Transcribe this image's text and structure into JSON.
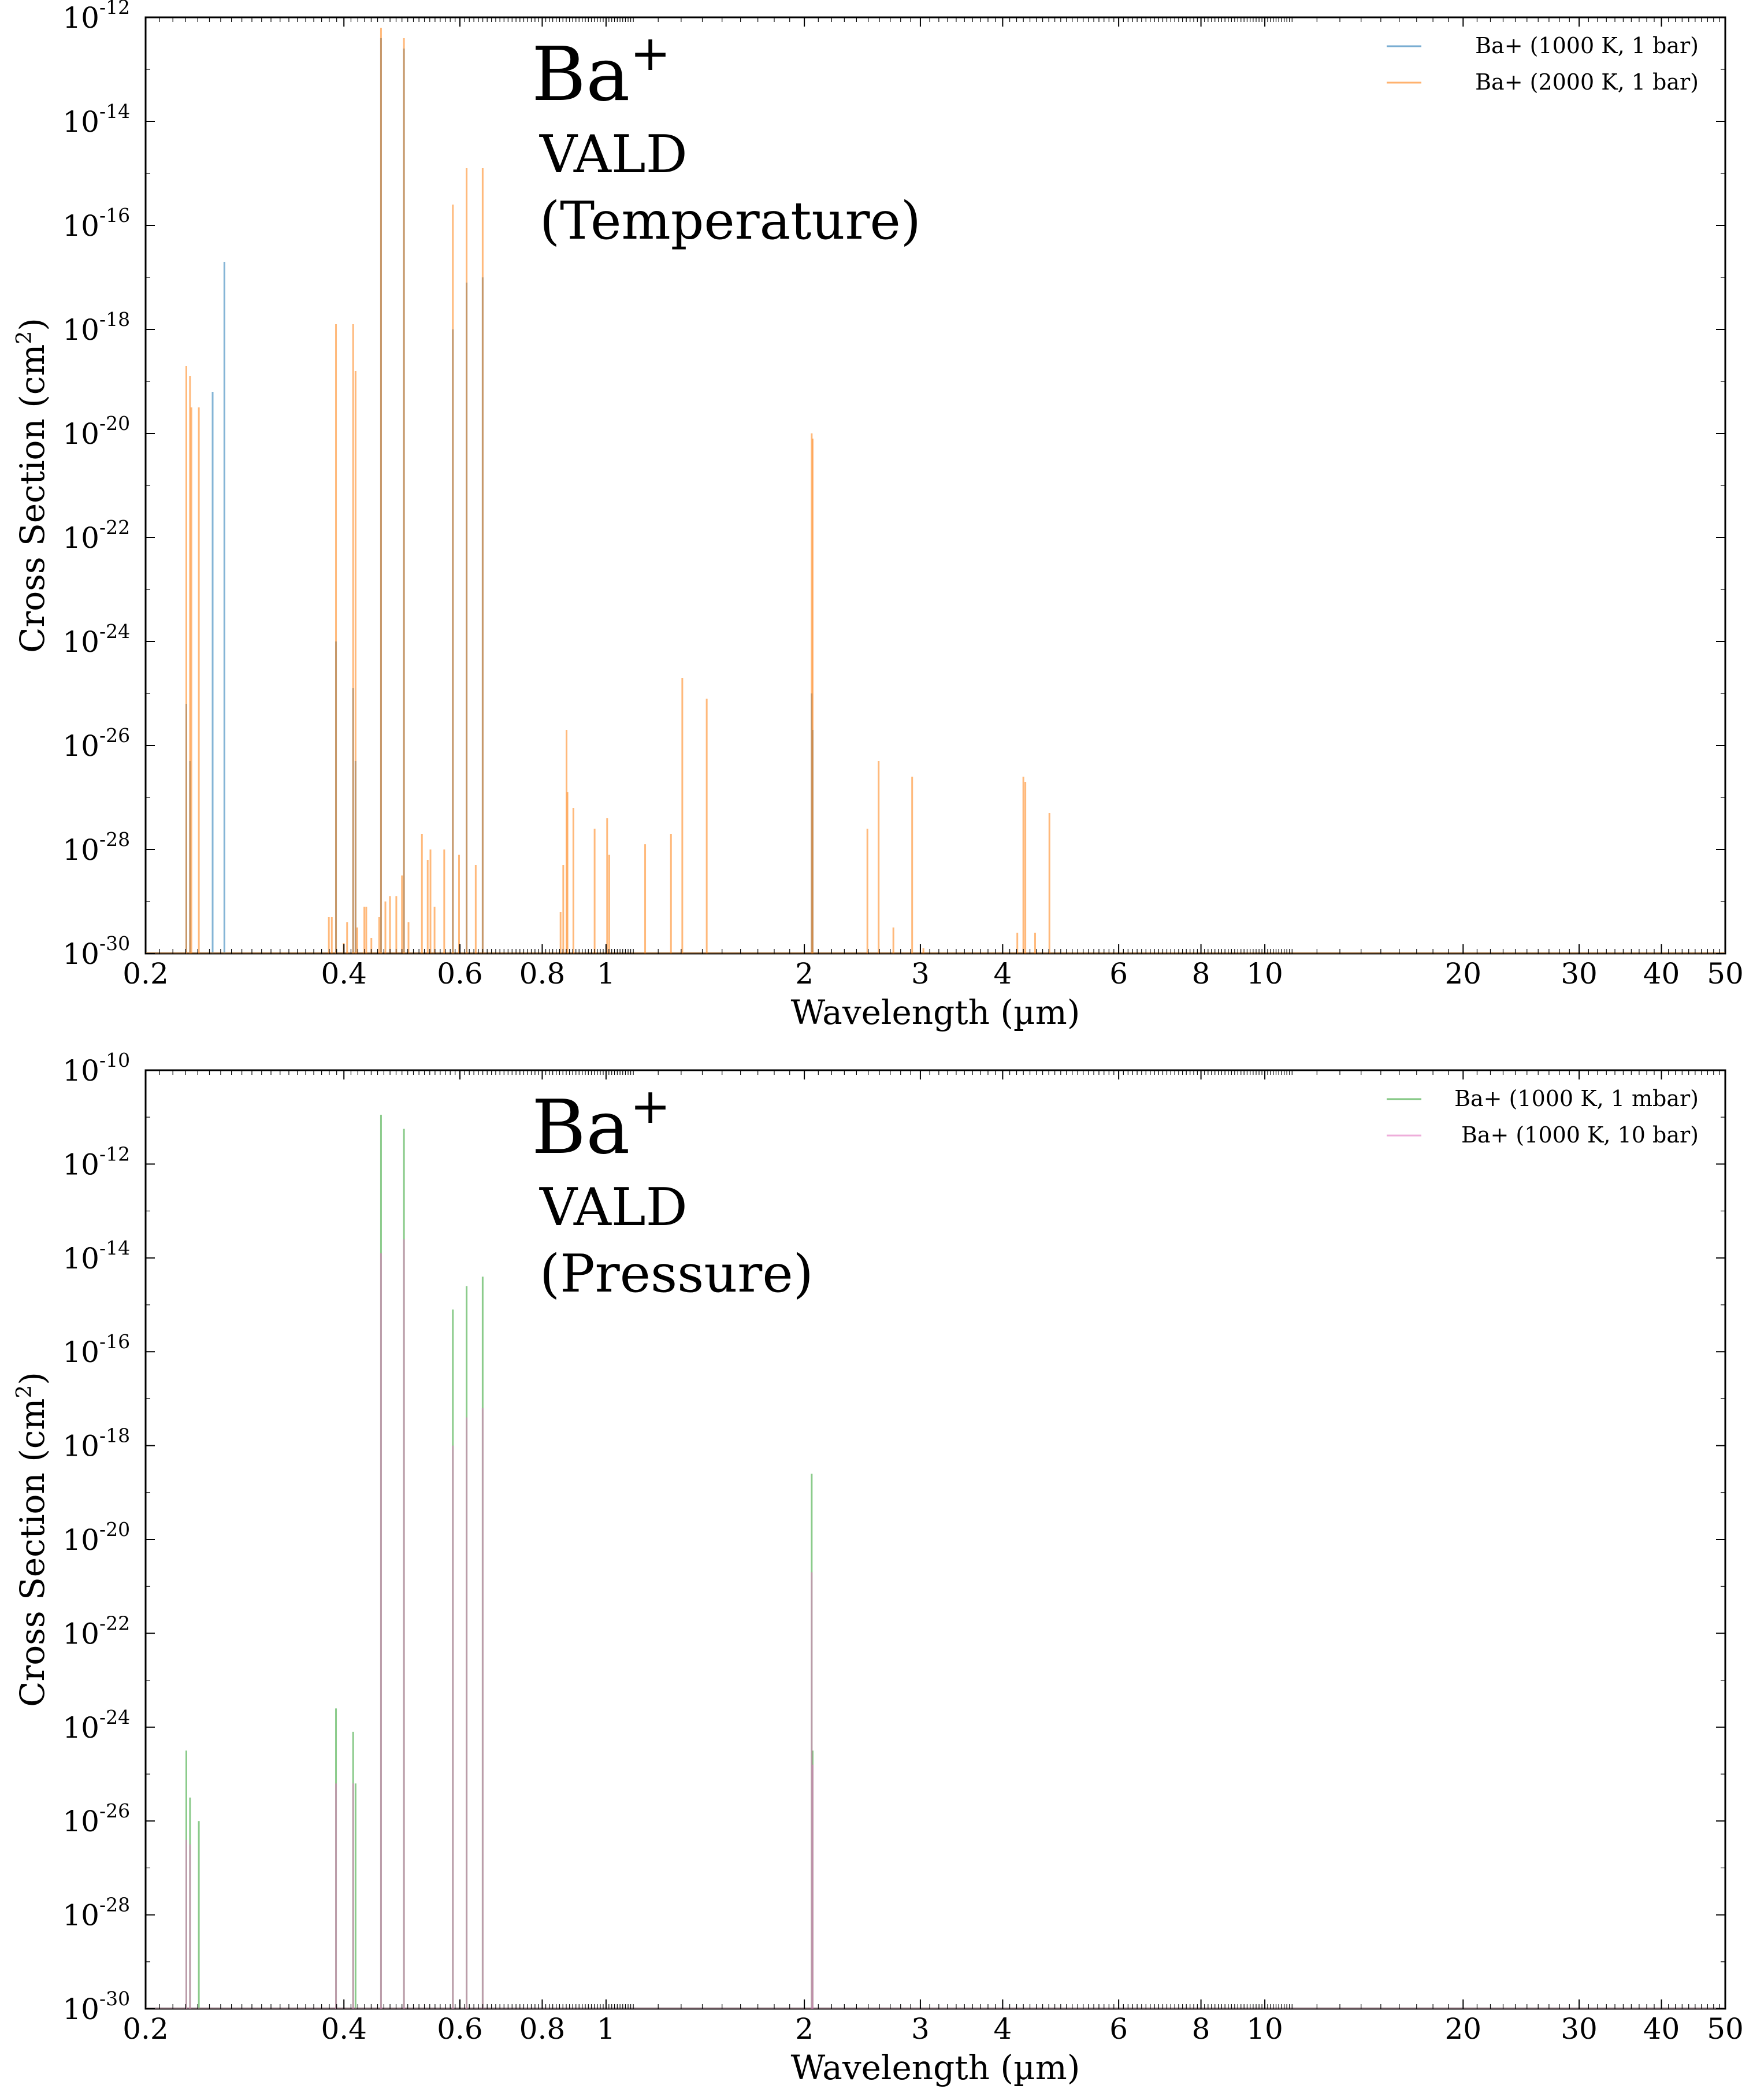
{
  "chart_data": [
    {
      "type": "line",
      "species": "Ba",
      "species_superscript": "+",
      "database_label": "VALD",
      "panel_label": "(Temperature)",
      "xlabel": "Wavelength (µm)",
      "ylabel_main": "Cross Section (cm",
      "ylabel_sup": "2",
      "ylabel_close": ")",
      "xscale": "log",
      "yscale": "log",
      "xlim": [
        0.2,
        50
      ],
      "ylim": [
        1e-30,
        1e-12
      ],
      "x_ticks": [
        0.2,
        0.4,
        0.6,
        0.8,
        1,
        2,
        3,
        4,
        6,
        8,
        10,
        20,
        30,
        40,
        50
      ],
      "x_tick_labels": [
        "0.2",
        "0.4",
        "0.6",
        "0.8",
        "1",
        "2",
        "3",
        "4",
        "6",
        "8",
        "10",
        "20",
        "30",
        "40",
        "50"
      ],
      "y_tick_exponents": [
        -30,
        -28,
        -26,
        -24,
        -22,
        -20,
        -18,
        -16,
        -14,
        -12
      ],
      "y_tick_base": "10",
      "legend_position": "top-right",
      "grid": false,
      "series": [
        {
          "name": "Ba+ (1000 K, 1 bar)",
          "color": "#1f77b4",
          "lines": [
            [
              0.2306,
              -25.2
            ],
            [
              0.2336,
              -26.3
            ],
            [
              0.2528,
              -19.2
            ],
            [
              0.2634,
              -16.7
            ],
            [
              0.3891,
              -24.0
            ],
            [
              0.4131,
              -24.9
            ],
            [
              0.4166,
              -26.3
            ],
            [
              0.4554,
              -12.4
            ],
            [
              0.4934,
              -12.6
            ],
            [
              0.5854,
              -18.0
            ],
            [
              0.6142,
              -17.1
            ],
            [
              0.6497,
              -17.0
            ],
            [
              2.052,
              -25.0
            ],
            [
              2.0587,
              -25.7
            ]
          ]
        },
        {
          "name": "Ba+ (2000 K, 1 bar)",
          "color": "#ff7f0e",
          "lines": [
            [
              0.2306,
              -18.7
            ],
            [
              0.2336,
              -18.9
            ],
            [
              0.2347,
              -19.5
            ],
            [
              0.2409,
              -19.5
            ],
            [
              0.3795,
              -29.3
            ],
            [
              0.3834,
              -29.3
            ],
            [
              0.3891,
              -17.9
            ],
            [
              0.3997,
              -29.8
            ],
            [
              0.4045,
              -29.4
            ],
            [
              0.4131,
              -17.9
            ],
            [
              0.4166,
              -18.8
            ],
            [
              0.4192,
              -29.5
            ],
            [
              0.4296,
              -29.1
            ],
            [
              0.4325,
              -29.1
            ],
            [
              0.4403,
              -29.7
            ],
            [
              0.4525,
              -29.3
            ],
            [
              0.4554,
              -12.2
            ],
            [
              0.4624,
              -29.0
            ],
            [
              0.4699,
              -28.9
            ],
            [
              0.4804,
              -28.9
            ],
            [
              0.49,
              -28.5
            ],
            [
              0.4934,
              -12.4
            ],
            [
              0.5013,
              -29.4
            ],
            [
              0.5254,
              -27.7
            ],
            [
              0.5361,
              -28.2
            ],
            [
              0.5413,
              -28.0
            ],
            [
              0.5491,
              -29.1
            ],
            [
              0.568,
              -28.0
            ],
            [
              0.5854,
              -15.6
            ],
            [
              0.5982,
              -28.1
            ],
            [
              0.6142,
              -14.9
            ],
            [
              0.6341,
              -28.3
            ],
            [
              0.6497,
              -14.9
            ],
            [
              0.853,
              -29.2
            ],
            [
              0.8611,
              -28.3
            ],
            [
              0.871,
              -25.7
            ],
            [
              0.8738,
              -26.9
            ],
            [
              0.8921,
              -27.2
            ],
            [
              0.9608,
              -27.6
            ],
            [
              1.0038,
              -27.4
            ],
            [
              1.0112,
              -28.1
            ],
            [
              1.1463,
              -27.9
            ],
            [
              1.2547,
              -27.7
            ],
            [
              1.3054,
              -24.7
            ],
            [
              1.4217,
              -25.1
            ],
            [
              2.052,
              -20.0
            ],
            [
              2.0587,
              -20.1
            ],
            [
              2.493,
              -27.6
            ],
            [
              2.593,
              -26.3
            ],
            [
              2.73,
              -29.5
            ],
            [
              2.915,
              -26.6
            ],
            [
              3.032,
              -29.9
            ],
            [
              4.21,
              -29.6
            ],
            [
              4.3,
              -26.6
            ],
            [
              4.33,
              -26.7
            ],
            [
              4.48,
              -29.6
            ],
            [
              4.71,
              -27.3
            ]
          ]
        }
      ]
    },
    {
      "type": "line",
      "species": "Ba",
      "species_superscript": "+",
      "database_label": "VALD",
      "panel_label": "(Pressure)",
      "xlabel": "Wavelength (µm)",
      "ylabel_main": "Cross Section (cm",
      "ylabel_sup": "2",
      "ylabel_close": ")",
      "xscale": "log",
      "yscale": "log",
      "xlim": [
        0.2,
        50
      ],
      "ylim": [
        1e-30,
        1e-10
      ],
      "x_ticks": [
        0.2,
        0.4,
        0.6,
        0.8,
        1,
        2,
        3,
        4,
        6,
        8,
        10,
        20,
        30,
        40,
        50
      ],
      "x_tick_labels": [
        "0.2",
        "0.4",
        "0.6",
        "0.8",
        "1",
        "2",
        "3",
        "4",
        "6",
        "8",
        "10",
        "20",
        "30",
        "40",
        "50"
      ],
      "y_tick_exponents": [
        -30,
        -28,
        -26,
        -24,
        -22,
        -20,
        -18,
        -16,
        -14,
        -12,
        -10
      ],
      "y_tick_base": "10",
      "legend_position": "top-right",
      "grid": false,
      "series": [
        {
          "name": "Ba+ (1000 K, 1 mbar)",
          "color": "#2ca02c",
          "lines": [
            [
              0.2306,
              -24.5
            ],
            [
              0.2336,
              -25.5
            ],
            [
              0.2409,
              -26.0
            ],
            [
              0.3891,
              -23.6
            ],
            [
              0.4131,
              -24.1
            ],
            [
              0.4166,
              -25.2
            ],
            [
              0.4554,
              -10.95
            ],
            [
              0.4934,
              -11.25
            ],
            [
              0.5854,
              -15.1
            ],
            [
              0.6142,
              -14.6
            ],
            [
              0.6497,
              -14.4
            ],
            [
              2.052,
              -18.6
            ],
            [
              2.0587,
              -24.5
            ]
          ]
        },
        {
          "name": "Ba+ (1000 K, 10 bar)",
          "color": "#e377c2",
          "lines": [
            [
              0.2306,
              -26.4
            ],
            [
              0.2336,
              -26.5
            ],
            [
              0.3891,
              -25.2
            ],
            [
              0.4131,
              -25.2
            ],
            [
              0.4554,
              -13.9
            ],
            [
              0.4934,
              -13.6
            ],
            [
              0.5854,
              -18.0
            ],
            [
              0.6142,
              -17.4
            ],
            [
              0.6497,
              -17.2
            ],
            [
              2.052,
              -20.7
            ],
            [
              2.0587,
              -24.8
            ]
          ]
        }
      ]
    }
  ]
}
